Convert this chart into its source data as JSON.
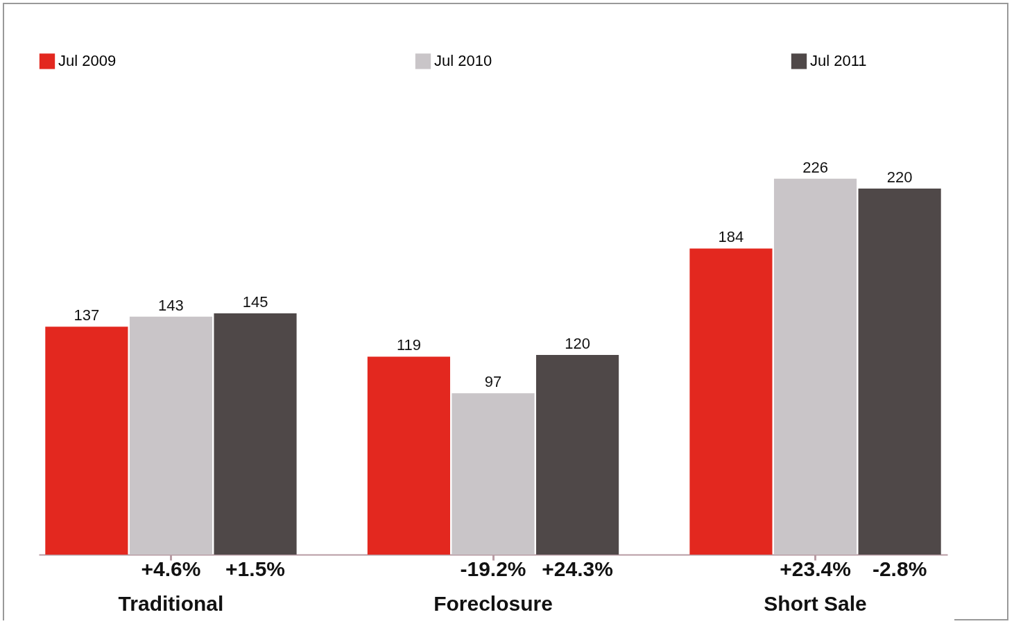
{
  "chart_data": {
    "type": "bar",
    "categories": [
      "Traditional",
      "Foreclosure",
      "Short Sale"
    ],
    "series": [
      {
        "name": "Jul 2009",
        "color": "#e3281f",
        "values": [
          137,
          119,
          184
        ]
      },
      {
        "name": "Jul 2010",
        "color": "#c9c5c8",
        "values": [
          143,
          97,
          226
        ]
      },
      {
        "name": "Jul 2011",
        "color": "#4f4848",
        "values": [
          145,
          120,
          220
        ]
      }
    ],
    "data_labels": true,
    "legend": "top",
    "grid": false,
    "annotations": [
      "+4.6%",
      "+1.5%",
      "-19.2%",
      "+24.3%",
      "+23.4%",
      "-2.8%"
    ]
  }
}
